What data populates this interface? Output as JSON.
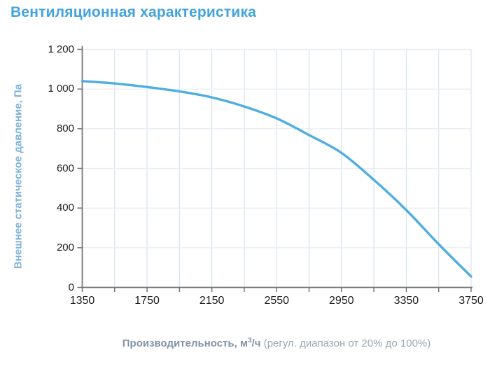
{
  "title": "Вентиляционная характеристика",
  "colors": {
    "title_blue": "#42A4DC",
    "y_label_blue": "#7FB2DB",
    "x_label_main": "#8292A6",
    "x_label_note": "#9AA6B4",
    "tick_label": "#1C1C1C",
    "axis_gray": "#757575",
    "grid_vertical": "#D7E3EC",
    "grid_horizontal": "#E3ECF2",
    "curve_blue": "#4FADE0",
    "background": "#FFFFFF"
  },
  "chart_data": {
    "type": "line",
    "title": "Вентиляционная характеристика",
    "ylabel": "Внешнее статическое давление, Па",
    "xlabel_main": "Производительность, м",
    "xlabel_sup": "3",
    "xlabel_unit2": "/ч",
    "xlabel_note": " (регул. диапазон от 20% до 100%)",
    "xlim": [
      1350,
      3750
    ],
    "ylim": [
      0,
      1200
    ],
    "x_major_ticks": [
      1350,
      1750,
      2150,
      2550,
      2950,
      3350,
      3750
    ],
    "x_tick_labels": [
      "1350",
      "1750",
      "2150",
      "2550",
      "2950",
      "3350",
      "3750"
    ],
    "x_minor_step": 200,
    "y_major_ticks": [
      0,
      200,
      400,
      600,
      800,
      1000,
      1200
    ],
    "y_tick_labels": [
      "0",
      "200",
      "400",
      "600",
      "800",
      "1 000",
      "1 200"
    ],
    "grid": true,
    "legend": "none",
    "series": [
      {
        "name": "fan-curve",
        "x": [
          1350,
          1550,
          1750,
          1950,
          2150,
          2350,
          2550,
          2750,
          2950,
          3150,
          3350,
          3550,
          3750
        ],
        "y": [
          1040,
          1028,
          1010,
          988,
          958,
          912,
          852,
          768,
          678,
          542,
          390,
          218,
          55
        ]
      }
    ]
  }
}
